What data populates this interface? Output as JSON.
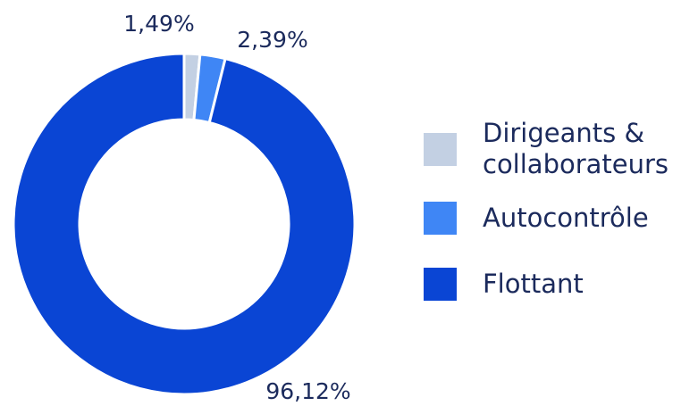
{
  "chart_data": {
    "type": "donut",
    "categories": [
      "Dirigeants & collaborateurs",
      "Autocontrôle",
      "Flottant"
    ],
    "values": [
      1.49,
      2.39,
      96.12
    ],
    "value_labels": [
      "1,49%",
      "2,39%",
      "96,12%"
    ],
    "colors": [
      "#c3d0e3",
      "#3f86f5",
      "#0a45d4"
    ]
  }
}
